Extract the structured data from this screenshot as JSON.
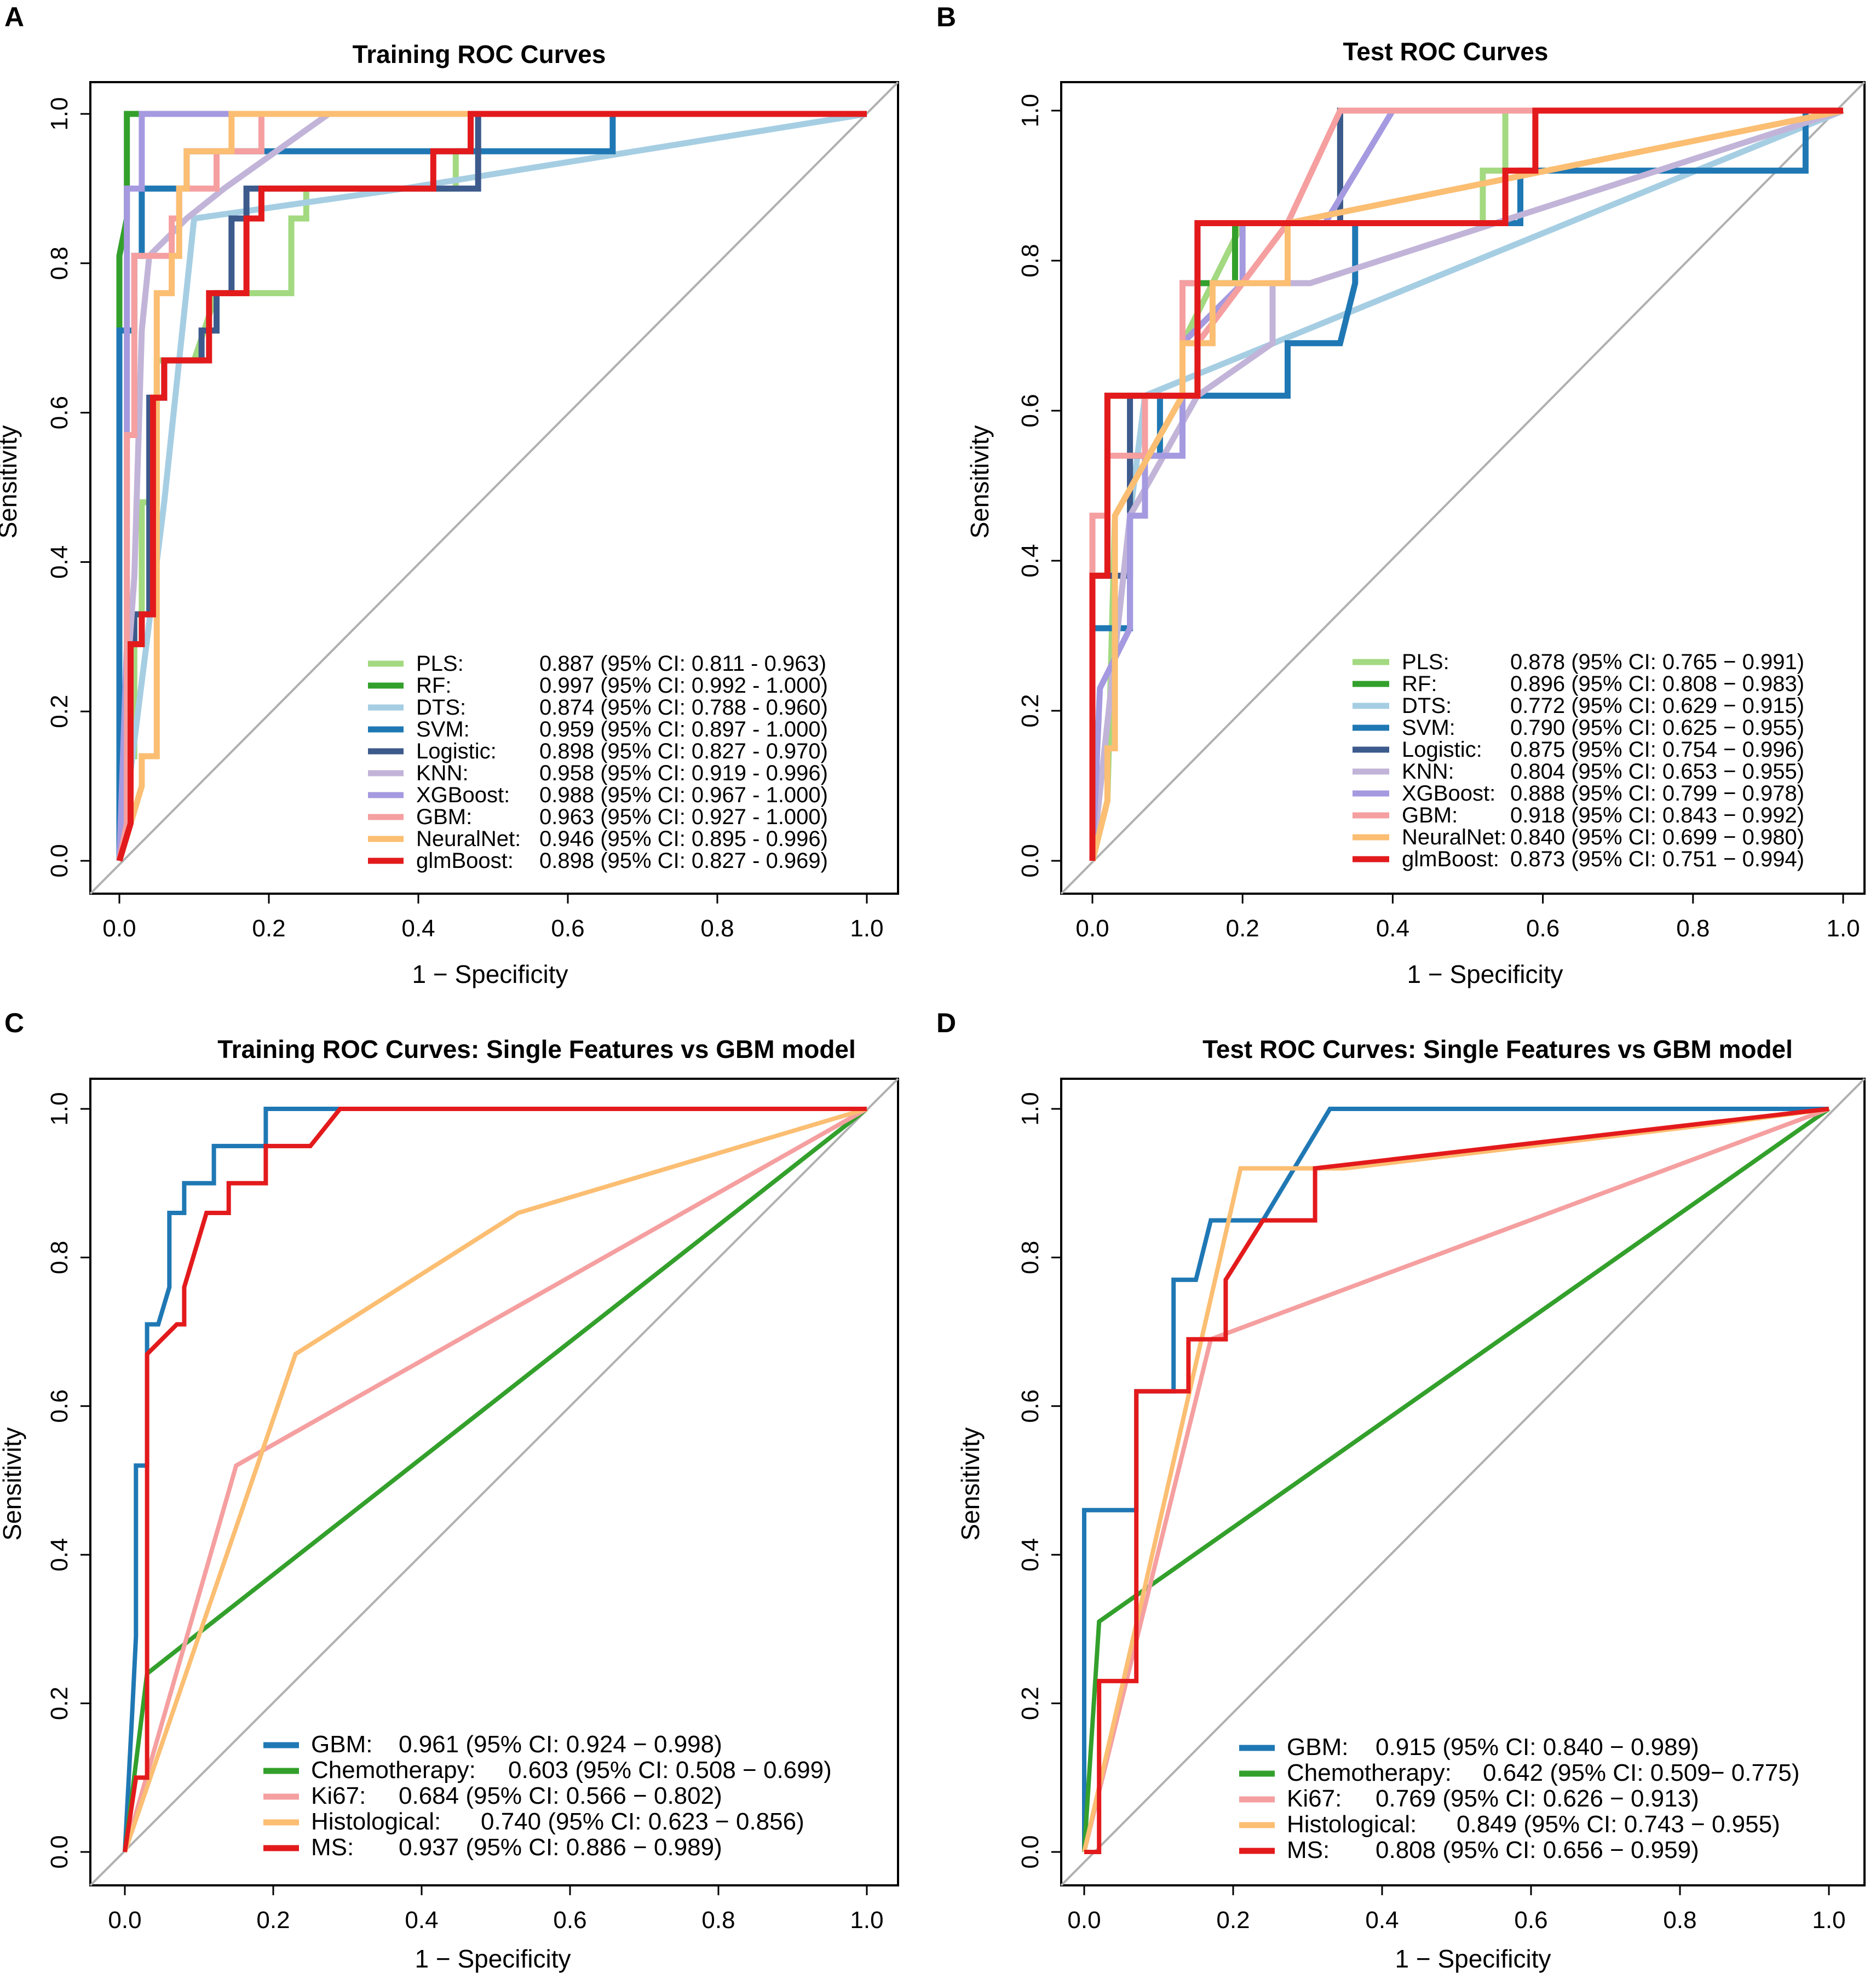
{
  "colors": {
    "PLS": "#a3d980",
    "RF": "#33a02c",
    "DTS": "#a6cee3",
    "SVM": "#1f78b4",
    "Logistic": "#3c5a8c",
    "KNN": "#c2b4d8",
    "XGBoost": "#a59ae0",
    "GBM": "#f59fa0",
    "NeuralNet": "#fbbe72",
    "glmBoost": "#e31a1c",
    "GBM_single": "#1f78b4",
    "Chemotherapy": "#33a02c",
    "Ki67": "#f59fa0",
    "Histological": "#fbbe72",
    "MS": "#e31a1c",
    "diagonal": "#b0b0b0"
  },
  "chart_data": [
    {
      "panel": "A",
      "type": "line",
      "title": "Training ROC Curves",
      "xlabel": "1 − Specificity",
      "ylabel": "Sensitivity",
      "xlim": [
        0,
        1
      ],
      "ylim": [
        0,
        1
      ],
      "xticks": [
        "0.0",
        "0.2",
        "0.4",
        "0.6",
        "0.8",
        "1.0"
      ],
      "yticks": [
        "0.0",
        "0.2",
        "0.4",
        "0.6",
        "0.8",
        "1.0"
      ],
      "legend_position": "bottom-right",
      "series": [
        {
          "key": "PLS",
          "name": "PLS:",
          "auc": "0.887 (95% CI: 0.811 - 0.963)",
          "x": [
            0,
            0.01,
            0.01,
            0.02,
            0.02,
            0.03,
            0.03,
            0.05,
            0.05,
            0.1,
            0.13,
            0.17,
            0.19,
            0.23,
            0.23,
            0.25,
            0.25,
            0.45,
            0.45,
            0.48,
            0.48,
            1.0
          ],
          "y": [
            0,
            0.05,
            0.14,
            0.14,
            0.33,
            0.33,
            0.48,
            0.48,
            0.67,
            0.67,
            0.76,
            0.76,
            0.76,
            0.76,
            0.86,
            0.86,
            0.9,
            0.9,
            0.95,
            0.95,
            1.0,
            1.0
          ]
        },
        {
          "key": "RF",
          "name": "RF:",
          "auc": "0.997 (95% CI: 0.992 - 1.000)",
          "x": [
            0,
            0,
            0.01,
            0.01,
            1.0
          ],
          "y": [
            0,
            0.81,
            0.86,
            1.0,
            1.0
          ]
        },
        {
          "key": "DTS",
          "name": "DTS:",
          "auc": "0.874 (95% CI: 0.788 - 0.960)",
          "x": [
            0,
            0.06,
            0.1,
            0.38,
            1.0
          ],
          "y": [
            0,
            0.48,
            0.86,
            0.9,
            1.0
          ]
        },
        {
          "key": "SVM",
          "name": "SVM:",
          "auc": "0.959 (95% CI: 0.897 - 1.000)",
          "x": [
            0,
            0,
            0.02,
            0.02,
            0.03,
            0.03,
            0.09,
            0.09,
            0.66,
            0.66,
            1.0
          ],
          "y": [
            0,
            0.71,
            0.71,
            0.81,
            0.81,
            0.9,
            0.9,
            0.95,
            0.95,
            1.0,
            1.0
          ]
        },
        {
          "key": "Logistic",
          "name": "Logistic:",
          "auc": "0.898 (95% CI: 0.827 - 0.970)",
          "x": [
            0,
            0.01,
            0.01,
            0.02,
            0.02,
            0.04,
            0.04,
            0.06,
            0.06,
            0.11,
            0.11,
            0.13,
            0.13,
            0.15,
            0.15,
            0.17,
            0.17,
            0.48,
            0.48,
            1.0
          ],
          "y": [
            0,
            0.05,
            0.29,
            0.29,
            0.33,
            0.33,
            0.62,
            0.62,
            0.67,
            0.67,
            0.71,
            0.71,
            0.76,
            0.76,
            0.86,
            0.86,
            0.9,
            0.9,
            1.0,
            1.0
          ]
        },
        {
          "key": "KNN",
          "name": "KNN:",
          "auc": "0.958 (95% CI: 0.919 - 0.996)",
          "x": [
            0,
            0.01,
            0.02,
            0.03,
            0.04,
            0.09,
            0.14,
            0.28,
            1.0
          ],
          "y": [
            0,
            0.24,
            0.38,
            0.71,
            0.81,
            0.86,
            0.9,
            1.0,
            1.0
          ]
        },
        {
          "key": "XGBoost",
          "name": "XGBoost:",
          "auc": "0.988 (95% CI: 0.967 - 1.000)",
          "x": [
            0,
            0.01,
            0.01,
            0.03,
            0.03,
            1.0
          ],
          "y": [
            0,
            0.29,
            0.9,
            0.9,
            1.0,
            1.0
          ]
        },
        {
          "key": "GBM",
          "name": "GBM:",
          "auc": "0.963 (95% CI: 0.927 - 1.000)",
          "x": [
            0,
            0.01,
            0.01,
            0.02,
            0.02,
            0.07,
            0.07,
            0.08,
            0.08,
            0.13,
            0.13,
            0.19,
            0.19,
            1.0
          ],
          "y": [
            0,
            0.05,
            0.57,
            0.57,
            0.81,
            0.81,
            0.86,
            0.86,
            0.9,
            0.9,
            0.95,
            0.95,
            1.0,
            1.0
          ]
        },
        {
          "key": "NeuralNet",
          "name": "NeuralNet:",
          "auc": "0.946 (95% CI: 0.895 - 0.996)",
          "x": [
            0,
            0.03,
            0.03,
            0.05,
            0.05,
            0.07,
            0.07,
            0.08,
            0.08,
            0.09,
            0.09,
            0.15,
            0.15,
            0.25,
            0.25,
            1.0
          ],
          "y": [
            0,
            0.1,
            0.14,
            0.14,
            0.76,
            0.76,
            0.81,
            0.81,
            0.9,
            0.9,
            0.95,
            0.95,
            1.0,
            1.0,
            1.0,
            1.0
          ]
        },
        {
          "key": "glmBoost",
          "name": "glmBoost:",
          "auc": "0.898 (95% CI: 0.827 - 0.969)",
          "x": [
            0,
            0.015,
            0.015,
            0.03,
            0.03,
            0.045,
            0.045,
            0.06,
            0.06,
            0.12,
            0.12,
            0.17,
            0.17,
            0.19,
            0.19,
            0.42,
            0.42,
            0.47,
            0.47,
            1.0
          ],
          "y": [
            0,
            0.05,
            0.29,
            0.29,
            0.33,
            0.33,
            0.62,
            0.62,
            0.67,
            0.67,
            0.76,
            0.76,
            0.86,
            0.86,
            0.9,
            0.9,
            0.95,
            0.95,
            1.0,
            1.0
          ]
        }
      ]
    },
    {
      "panel": "B",
      "type": "line",
      "title": "Test ROC Curves",
      "xlabel": "1 − Specificity",
      "ylabel": "Sensitivity",
      "xlim": [
        0,
        1
      ],
      "ylim": [
        0,
        1
      ],
      "xticks": [
        "0.0",
        "0.2",
        "0.4",
        "0.6",
        "0.8",
        "1.0"
      ],
      "yticks": [
        "0.0",
        "0.2",
        "0.4",
        "0.6",
        "0.8",
        "1.0"
      ],
      "legend_position": "bottom-right",
      "series": [
        {
          "key": "PLS",
          "name": "PLS:",
          "auc": "0.878 (95% CI: 0.765 − 0.991)",
          "x": [
            0,
            0.02,
            0.03,
            0.12,
            0.12,
            0.16,
            0.2,
            0.5,
            0.52,
            0.52,
            0.55,
            0.55,
            1.0
          ],
          "y": [
            0,
            0.08,
            0.46,
            0.62,
            0.69,
            0.77,
            0.85,
            0.85,
            0.85,
            0.92,
            0.92,
            1.0,
            1.0
          ]
        },
        {
          "key": "RF",
          "name": "RF:",
          "auc": "0.896 (95% CI: 0.808 − 0.983)",
          "x": [
            0,
            0,
            0.02,
            0.02,
            0.14,
            0.14,
            0.19,
            0.19,
            0.33,
            0.33,
            1.0
          ],
          "y": [
            0,
            0.38,
            0.38,
            0.62,
            0.62,
            0.77,
            0.77,
            0.85,
            0.85,
            1.0,
            1.0
          ]
        },
        {
          "key": "DTS",
          "name": "DTS:",
          "auc": "0.772 (95% CI: 0.629 − 0.915)",
          "x": [
            0,
            0.05,
            0.07,
            1.0
          ],
          "y": [
            0,
            0.46,
            0.62,
            1.0
          ]
        },
        {
          "key": "SVM",
          "name": "SVM:",
          "auc": "0.790 (95% CI: 0.625 − 0.955)",
          "x": [
            0,
            0,
            0.05,
            0.05,
            0.09,
            0.09,
            0.26,
            0.26,
            0.33,
            0.35,
            0.35,
            0.57,
            0.57,
            0.95,
            0.95,
            1.0
          ],
          "y": [
            0,
            0.31,
            0.31,
            0.54,
            0.54,
            0.62,
            0.62,
            0.69,
            0.69,
            0.77,
            0.85,
            0.85,
            0.92,
            0.92,
            1.0,
            1.0
          ]
        },
        {
          "key": "Logistic",
          "name": "Logistic:",
          "auc": "0.875 (95% CI: 0.754 − 0.996)",
          "x": [
            0,
            0,
            0.05,
            0.05,
            0.12,
            0.12,
            0.14,
            0.14,
            0.2,
            0.2,
            0.33,
            0.33,
            1.0
          ],
          "y": [
            0,
            0.38,
            0.38,
            0.62,
            0.62,
            0.77,
            0.77,
            0.85,
            0.85,
            0.85,
            0.85,
            1.0,
            1.0
          ]
        },
        {
          "key": "KNN",
          "name": "KNN:",
          "auc": "0.804 (95% CI: 0.653 − 0.955)",
          "x": [
            0,
            0.05,
            0.14,
            0.24,
            0.24,
            0.29,
            1.0
          ],
          "y": [
            0,
            0.46,
            0.62,
            0.69,
            0.77,
            0.77,
            1.0
          ]
        },
        {
          "key": "XGBoost",
          "name": "XGBoost:",
          "auc": "0.888 (95% CI: 0.799 − 0.978)",
          "x": [
            0,
            0.01,
            0.01,
            0.05,
            0.05,
            0.07,
            0.07,
            0.12,
            0.12,
            0.2,
            0.2,
            0.31,
            0.4,
            1.0
          ],
          "y": [
            0,
            0.23,
            0.23,
            0.31,
            0.46,
            0.46,
            0.54,
            0.54,
            0.69,
            0.77,
            0.85,
            0.85,
            1.0,
            1.0
          ]
        },
        {
          "key": "GBM",
          "name": "GBM:",
          "auc": "0.918 (95% CI: 0.843 − 0.992)",
          "x": [
            0,
            0,
            0.02,
            0.02,
            0.05,
            0.07,
            0.07,
            0.12,
            0.12,
            0.14,
            0.14,
            0.26,
            0.33,
            1.0
          ],
          "y": [
            0,
            0.46,
            0.46,
            0.54,
            0.54,
            0.54,
            0.62,
            0.62,
            0.77,
            0.77,
            0.69,
            0.85,
            1.0,
            1.0
          ]
        },
        {
          "key": "NeuralNet",
          "name": "NeuralNet:",
          "auc": "0.840 (95% CI: 0.699 − 0.980)",
          "x": [
            0,
            0.02,
            0.02,
            0.03,
            0.03,
            0.12,
            0.12,
            0.16,
            0.16,
            0.26,
            0.26,
            1.0
          ],
          "y": [
            0,
            0.08,
            0.15,
            0.15,
            0.46,
            0.62,
            0.69,
            0.69,
            0.77,
            0.77,
            0.85,
            1.0
          ]
        },
        {
          "key": "glmBoost",
          "name": "glmBoost:",
          "auc": "0.873 (95% CI: 0.751 − 0.994)",
          "x": [
            0,
            0,
            0.02,
            0.02,
            0.05,
            0.05,
            0.14,
            0.14,
            0.55,
            0.55,
            0.59,
            0.59,
            1.0
          ],
          "y": [
            0,
            0.38,
            0.38,
            0.62,
            0.62,
            0.62,
            0.62,
            0.85,
            0.85,
            0.92,
            0.92,
            1.0,
            1.0
          ]
        }
      ]
    },
    {
      "panel": "C",
      "type": "line",
      "title": "Training ROC Curves: Single Features vs GBM model",
      "xlabel": "1 − Specificity",
      "ylabel": "Sensitivity",
      "xlim": [
        0,
        1
      ],
      "ylim": [
        0,
        1
      ],
      "xticks": [
        "0.0",
        "0.2",
        "0.4",
        "0.6",
        "0.8",
        "1.0"
      ],
      "yticks": [
        "0.0",
        "0.2",
        "0.4",
        "0.6",
        "0.8",
        "1.0"
      ],
      "legend_position": "bottom-right",
      "series": [
        {
          "key": "GBM_single",
          "name": "GBM:",
          "auc": "0.961 (95% CI: 0.924 − 0.998)",
          "x": [
            0,
            0.01,
            0.015,
            0.015,
            0.03,
            0.03,
            0.045,
            0.06,
            0.06,
            0.08,
            0.08,
            0.12,
            0.12,
            0.19,
            0.19,
            0.29,
            1.0
          ],
          "y": [
            0,
            0.19,
            0.29,
            0.52,
            0.52,
            0.71,
            0.71,
            0.76,
            0.86,
            0.86,
            0.9,
            0.9,
            0.95,
            0.95,
            1.0,
            1.0,
            1.0
          ]
        },
        {
          "key": "Chemotherapy",
          "name": "Chemotherapy:",
          "auc": "0.603 (95% CI: 0.508 − 0.699)",
          "x": [
            0,
            0.03,
            1.0
          ],
          "y": [
            0,
            0.24,
            1.0
          ]
        },
        {
          "key": "Ki67",
          "name": "Ki67:",
          "auc": "0.684 (95% CI: 0.566 − 0.802)",
          "x": [
            0,
            0.15,
            1.0
          ],
          "y": [
            0,
            0.52,
            1.0
          ]
        },
        {
          "key": "Histological",
          "name": "Histological:",
          "auc": "0.740 (95% CI: 0.623 − 0.856)",
          "x": [
            0,
            0.23,
            0.53,
            1.0
          ],
          "y": [
            0,
            0.67,
            0.86,
            1.0
          ]
        },
        {
          "key": "MS",
          "name": "MS:",
          "auc": "0.937 (95% CI: 0.886 − 0.989)",
          "x": [
            0,
            0.015,
            0.015,
            0.03,
            0.03,
            0.07,
            0.08,
            0.08,
            0.11,
            0.11,
            0.14,
            0.14,
            0.19,
            0.19,
            0.25,
            0.25,
            0.29,
            1.0
          ],
          "y": [
            0,
            0.1,
            0.1,
            0.1,
            0.67,
            0.71,
            0.71,
            0.76,
            0.86,
            0.86,
            0.86,
            0.9,
            0.9,
            0.95,
            0.95,
            0.95,
            1.0,
            1.0
          ]
        }
      ]
    },
    {
      "panel": "D",
      "type": "line",
      "title": "Test ROC Curves: Single Features vs GBM model",
      "xlabel": "1 − Specificity",
      "ylabel": "Sensitivity",
      "xlim": [
        0,
        1
      ],
      "ylim": [
        0,
        1
      ],
      "xticks": [
        "0.0",
        "0.2",
        "0.4",
        "0.6",
        "0.8",
        "1.0"
      ],
      "yticks": [
        "0.0",
        "0.2",
        "0.4",
        "0.6",
        "0.8",
        "1.0"
      ],
      "legend_position": "bottom-right",
      "series": [
        {
          "key": "GBM_single",
          "name": "GBM:",
          "auc": "0.915 (95% CI: 0.840 − 0.989)",
          "x": [
            0,
            0,
            0.07,
            0.07,
            0.12,
            0.12,
            0.15,
            0.17,
            0.17,
            0.24,
            0.33,
            0.33,
            1.0
          ],
          "y": [
            0,
            0.46,
            0.46,
            0.62,
            0.62,
            0.77,
            0.77,
            0.85,
            0.85,
            0.85,
            1.0,
            1.0,
            1.0
          ]
        },
        {
          "key": "Chemotherapy",
          "name": "Chemotherapy:",
          "auc": "0.642 (95% CI: 0.509− 0.775)",
          "x": [
            0,
            0.02,
            1.0
          ],
          "y": [
            0,
            0.31,
            1.0
          ]
        },
        {
          "key": "Ki67",
          "name": "Ki67:",
          "auc": "0.769 (95% CI: 0.626 − 0.913)",
          "x": [
            0,
            0.17,
            1.0
          ],
          "y": [
            0,
            0.69,
            1.0
          ]
        },
        {
          "key": "Histological",
          "name": "Histological:",
          "auc": "0.849 (95% CI: 0.743 − 0.955)",
          "x": [
            0,
            0.21,
            0.35,
            0.85,
            1.0
          ],
          "y": [
            0,
            0.92,
            0.92,
            0.98,
            1.0
          ]
        },
        {
          "key": "MS",
          "name": "MS:",
          "auc": "0.808 (95% CI: 0.656 − 0.959)",
          "x": [
            0,
            0.02,
            0.02,
            0.07,
            0.07,
            0.12,
            0.14,
            0.14,
            0.19,
            0.19,
            0.24,
            0.31,
            0.31,
            1.0
          ],
          "y": [
            0,
            0,
            0.23,
            0.23,
            0.62,
            0.62,
            0.62,
            0.69,
            0.69,
            0.77,
            0.85,
            0.85,
            0.92,
            1.0
          ]
        }
      ]
    }
  ]
}
